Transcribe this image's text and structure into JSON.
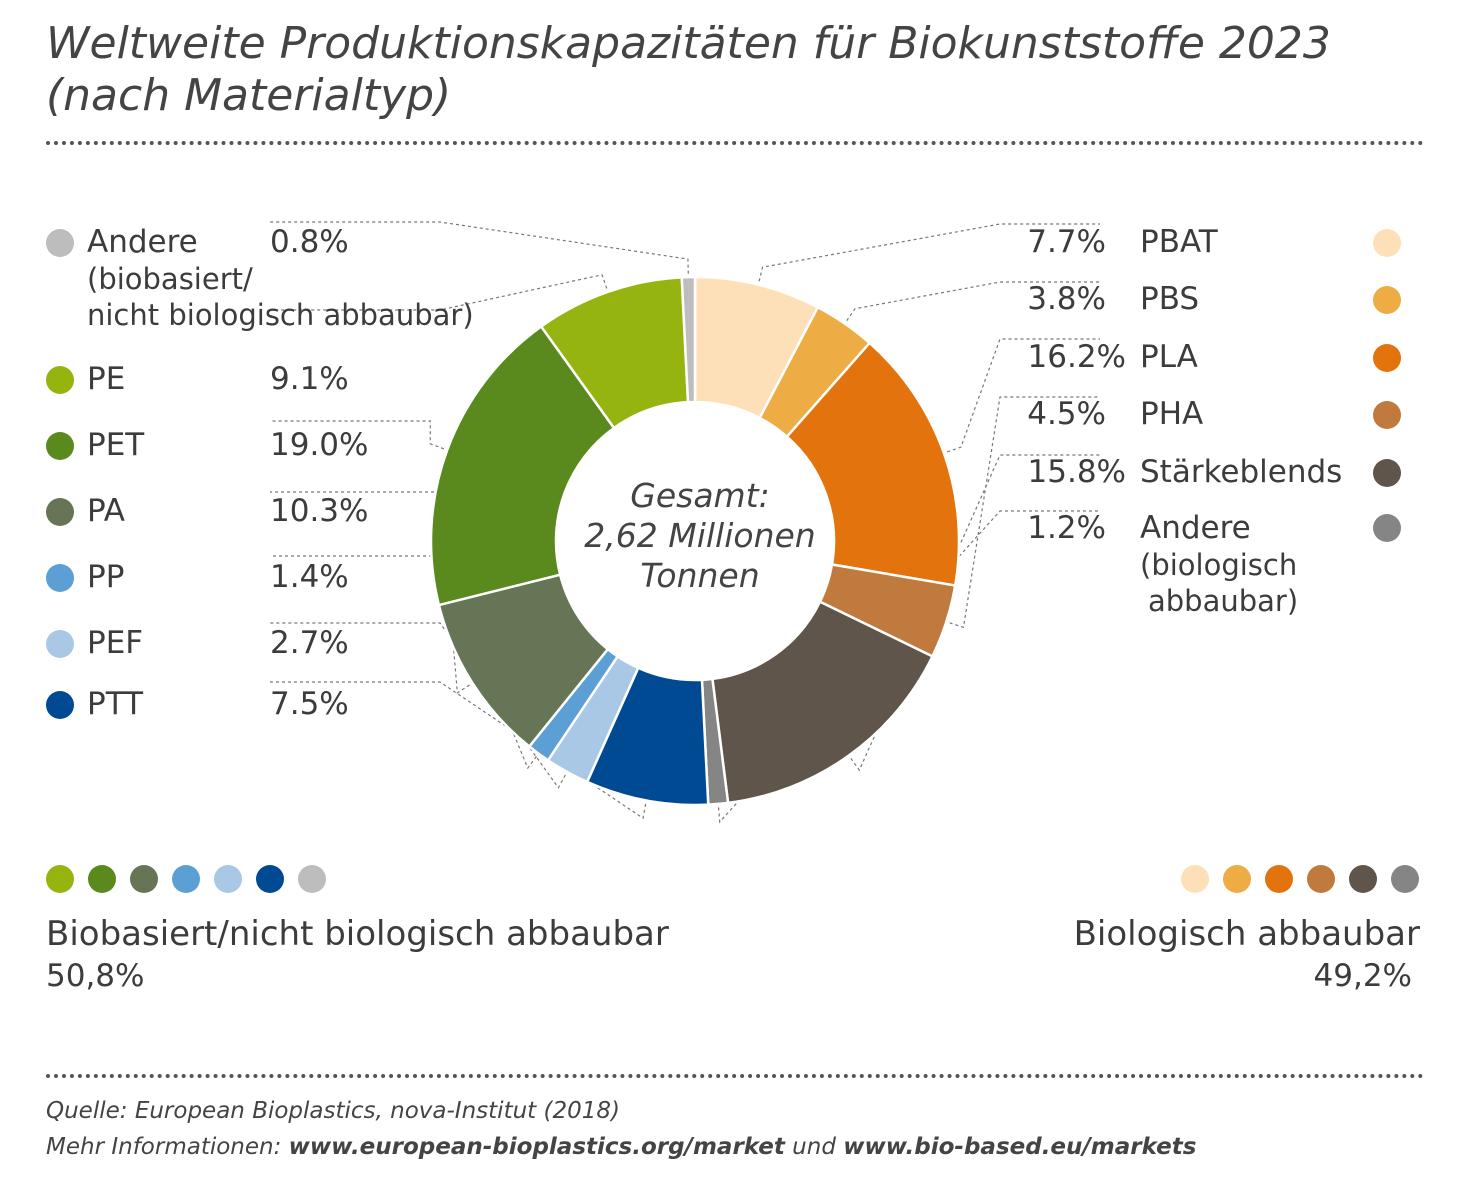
{
  "title": "Weltweite Produktionskapazitäten für Biokunststoffe 2023 (nach Materialtyp)",
  "center": {
    "line1": "Gesamt:",
    "line2": "2,62 Millionen",
    "line3": "Tonnen"
  },
  "left_legend": [
    {
      "label": "Andere",
      "sub1": "(biobasiert/",
      "sub2": "nicht biologisch abbaubar)",
      "pct": "0.8%",
      "color": "#bdbdbd"
    },
    {
      "label": "PE",
      "pct": "9.1%",
      "color": "#96b40f"
    },
    {
      "label": "PET",
      "pct": "19.0%",
      "color": "#5a8a1e"
    },
    {
      "label": "PA",
      "pct": "10.3%",
      "color": "#657556"
    },
    {
      "label": "PP",
      "pct": "1.4%",
      "color": "#5c9fd4"
    },
    {
      "label": "PEF",
      "pct": "2.7%",
      "color": "#a9c8e6"
    },
    {
      "label": "PTT",
      "pct": "7.5%",
      "color": "#004a93"
    }
  ],
  "right_legend": [
    {
      "label": "PBAT",
      "pct": "7.7%",
      "color": "#fde0b8"
    },
    {
      "label": "PBS",
      "pct": "3.8%",
      "color": "#eeac44"
    },
    {
      "label": "PLA",
      "pct": "16.2%",
      "color": "#e2730d"
    },
    {
      "label": "PHA",
      "pct": "4.5%",
      "color": "#c07a3e"
    },
    {
      "label": "Stärkeblends",
      "pct": "15.8%",
      "color": "#5f554b"
    },
    {
      "label": "Andere",
      "sub1": "(biologisch",
      "sub2": "abbaubar)",
      "pct": "1.2%",
      "color": "#858585"
    }
  ],
  "groups": {
    "left": {
      "title": "Biobasiert/nicht biologisch abbaubar",
      "pct": "50,8%"
    },
    "right": {
      "title": "Biologisch abbaubar",
      "pct": "49,2%"
    }
  },
  "source": {
    "prefix": "Quelle: European Bioplastics, nova-Institut (2018)",
    "more_prefix": "Mehr Informationen: ",
    "link1": "www.european-bioplastics.org/market",
    "joiner": " und ",
    "link2": "www.bio-based.eu/markets"
  },
  "chart_data": {
    "type": "pie",
    "title": "Weltweite Produktionskapazitäten für Biokunststoffe 2023 (nach Materialtyp)",
    "center_label": "Gesamt: 2,62 Millionen Tonnen",
    "slices": [
      {
        "label": "PBAT",
        "value": 7.7,
        "color": "#fde0b8"
      },
      {
        "label": "PBS",
        "value": 3.8,
        "color": "#eeac44"
      },
      {
        "label": "PLA",
        "value": 16.2,
        "color": "#e2730d"
      },
      {
        "label": "PHA",
        "value": 4.5,
        "color": "#c07a3e"
      },
      {
        "label": "Stärkeblends",
        "value": 15.8,
        "color": "#5f554b"
      },
      {
        "label": "Andere (biologisch abbaubar)",
        "value": 1.2,
        "color": "#858585"
      },
      {
        "label": "PTT",
        "value": 7.5,
        "color": "#004a93"
      },
      {
        "label": "PEF",
        "value": 2.7,
        "color": "#a9c8e6"
      },
      {
        "label": "PP",
        "value": 1.4,
        "color": "#5c9fd4"
      },
      {
        "label": "PA",
        "value": 10.3,
        "color": "#657556"
      },
      {
        "label": "PET",
        "value": 19.0,
        "color": "#5a8a1e"
      },
      {
        "label": "PE",
        "value": 9.1,
        "color": "#96b40f"
      },
      {
        "label": "Andere (biobasiert/nicht biologisch abbaubar)",
        "value": 0.8,
        "color": "#bdbdbd"
      }
    ]
  }
}
